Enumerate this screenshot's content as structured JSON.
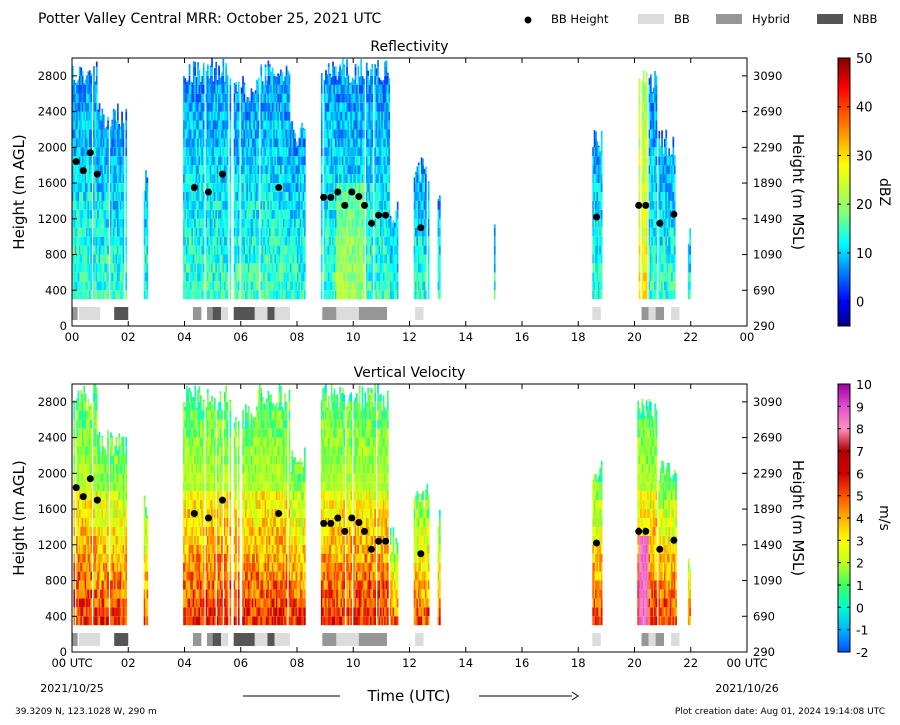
{
  "header": {
    "title": "Potter Valley Central MRR:  October 25, 2021 UTC",
    "legend": [
      {
        "label": "BB Height",
        "kind": "dot",
        "color": "#000000"
      },
      {
        "label": "BB",
        "kind": "box",
        "color": "#dcdcdc"
      },
      {
        "label": "Hybrid",
        "kind": "box",
        "color": "#969696"
      },
      {
        "label": "NBB",
        "kind": "box",
        "color": "#555555"
      }
    ]
  },
  "footer": {
    "location": "39.3209 N, 123.1028 W, 290 m",
    "creation": "Plot creation date: Aug 01, 2024 19:14:08 UTC",
    "xlabel": "Time (UTC)",
    "start_date": "2021/10/25",
    "end_date": "2021/10/26"
  },
  "chart_data": [
    {
      "type": "heatmap",
      "title": "Reflectivity",
      "ylabel": "Height (m AGL)",
      "ylabel_right": "Height (m MSL)",
      "xlim": [
        0,
        24
      ],
      "ylim": [
        0,
        3000
      ],
      "x_ticks": [
        "00",
        "02",
        "04",
        "06",
        "08",
        "10",
        "12",
        "14",
        "16",
        "18",
        "20",
        "22",
        "00"
      ],
      "y_ticks": [
        0,
        400,
        800,
        1200,
        1600,
        2000,
        2400,
        2800
      ],
      "y_ticks_right": [
        "290",
        "690",
        "1090",
        "1490",
        "1890",
        "2290",
        "2690",
        "3090"
      ],
      "colorbar": {
        "label": "dBZ",
        "min": -5,
        "max": 50,
        "ticks": [
          0,
          10,
          20,
          30,
          40,
          50
        ],
        "colors": [
          "#00007f",
          "#0000ff",
          "#007fff",
          "#00ffff",
          "#7fff7f",
          "#ffff00",
          "#ff7f00",
          "#ff0000",
          "#7f0000"
        ]
      },
      "bb_heights": [
        [
          0.15,
          1840
        ],
        [
          0.4,
          1740
        ],
        [
          0.65,
          1940
        ],
        [
          0.9,
          1700
        ],
        [
          4.35,
          1550
        ],
        [
          4.85,
          1500
        ],
        [
          5.35,
          1700
        ],
        [
          7.35,
          1550
        ],
        [
          8.95,
          1440
        ],
        [
          9.2,
          1440
        ],
        [
          9.45,
          1500
        ],
        [
          9.7,
          1350
        ],
        [
          9.95,
          1500
        ],
        [
          10.2,
          1450
        ],
        [
          10.4,
          1350
        ],
        [
          10.65,
          1150
        ],
        [
          10.9,
          1240
        ],
        [
          11.15,
          1240
        ],
        [
          12.4,
          1100
        ],
        [
          18.65,
          1220
        ],
        [
          20.15,
          1350
        ],
        [
          20.4,
          1350
        ],
        [
          20.9,
          1150
        ],
        [
          21.4,
          1250
        ]
      ],
      "bb_types": [
        [
          0.0,
          0.2,
          "Hybrid"
        ],
        [
          0.25,
          1.0,
          "BB"
        ],
        [
          1.5,
          2.0,
          "NBB"
        ],
        [
          4.3,
          4.6,
          "Hybrid"
        ],
        [
          4.8,
          5.0,
          "Hybrid"
        ],
        [
          5.0,
          5.3,
          "NBB"
        ],
        [
          5.3,
          5.55,
          "BB"
        ],
        [
          5.75,
          6.5,
          "NBB"
        ],
        [
          6.5,
          6.95,
          "BB"
        ],
        [
          6.95,
          7.2,
          "NBB"
        ],
        [
          7.2,
          7.75,
          "BB"
        ],
        [
          8.9,
          9.4,
          "Hybrid"
        ],
        [
          9.4,
          10.2,
          "BB"
        ],
        [
          10.2,
          11.2,
          "Hybrid"
        ],
        [
          12.2,
          12.5,
          "BB"
        ],
        [
          18.5,
          18.8,
          "BB"
        ],
        [
          20.25,
          20.5,
          "Hybrid"
        ],
        [
          20.5,
          20.75,
          "BB"
        ],
        [
          20.75,
          21.05,
          "Hybrid"
        ],
        [
          21.3,
          21.6,
          "BB"
        ]
      ]
    },
    {
      "type": "heatmap",
      "title": "Vertical Velocity",
      "ylabel": "Height (m AGL)",
      "ylabel_right": "Height (m MSL)",
      "xlim": [
        0,
        24
      ],
      "ylim": [
        0,
        3000
      ],
      "x_ticks": [
        "00 UTC",
        "02",
        "04",
        "06",
        "08",
        "10",
        "12",
        "14",
        "16",
        "18",
        "20",
        "22",
        "00 UTC"
      ],
      "y_ticks": [
        0,
        400,
        800,
        1200,
        1600,
        2000,
        2400,
        2800
      ],
      "y_ticks_right": [
        "290",
        "690",
        "1090",
        "1490",
        "1890",
        "2290",
        "2690",
        "3090"
      ],
      "colorbar": {
        "label": "m/s",
        "min": -2,
        "max": 10,
        "ticks": [
          -2,
          -1,
          0,
          1,
          2,
          3,
          4,
          5,
          6,
          7,
          8,
          9,
          10
        ],
        "colors": [
          "#0050ff",
          "#00b4ff",
          "#00ffd0",
          "#40ff60",
          "#c0ff20",
          "#ffff00",
          "#ffb000",
          "#ff5000",
          "#d00000",
          "#b00000",
          "#ff90c0",
          "#e050d0",
          "#a000a0"
        ]
      },
      "bb_heights": [
        [
          0.15,
          1840
        ],
        [
          0.4,
          1740
        ],
        [
          0.65,
          1940
        ],
        [
          0.9,
          1700
        ],
        [
          4.35,
          1550
        ],
        [
          4.85,
          1500
        ],
        [
          5.35,
          1700
        ],
        [
          7.35,
          1550
        ],
        [
          8.95,
          1440
        ],
        [
          9.2,
          1440
        ],
        [
          9.45,
          1500
        ],
        [
          9.7,
          1350
        ],
        [
          9.95,
          1500
        ],
        [
          10.2,
          1450
        ],
        [
          10.4,
          1350
        ],
        [
          10.65,
          1150
        ],
        [
          10.9,
          1240
        ],
        [
          11.15,
          1240
        ],
        [
          12.4,
          1100
        ],
        [
          18.65,
          1220
        ],
        [
          20.15,
          1350
        ],
        [
          20.4,
          1350
        ],
        [
          20.9,
          1150
        ],
        [
          21.4,
          1250
        ]
      ],
      "bb_types": [
        [
          0.0,
          0.2,
          "Hybrid"
        ],
        [
          0.25,
          1.0,
          "BB"
        ],
        [
          1.5,
          2.0,
          "NBB"
        ],
        [
          4.3,
          4.6,
          "Hybrid"
        ],
        [
          4.8,
          5.0,
          "Hybrid"
        ],
        [
          5.0,
          5.3,
          "NBB"
        ],
        [
          5.3,
          5.55,
          "BB"
        ],
        [
          5.75,
          6.5,
          "NBB"
        ],
        [
          6.5,
          6.95,
          "BB"
        ],
        [
          6.95,
          7.2,
          "NBB"
        ],
        [
          7.2,
          7.75,
          "BB"
        ],
        [
          8.9,
          9.4,
          "Hybrid"
        ],
        [
          9.4,
          10.2,
          "BB"
        ],
        [
          10.2,
          11.2,
          "Hybrid"
        ],
        [
          12.2,
          12.5,
          "BB"
        ],
        [
          18.5,
          18.8,
          "BB"
        ],
        [
          20.25,
          20.5,
          "Hybrid"
        ],
        [
          20.5,
          20.75,
          "BB"
        ],
        [
          20.75,
          21.05,
          "Hybrid"
        ],
        [
          21.3,
          21.6,
          "BB"
        ]
      ]
    }
  ]
}
